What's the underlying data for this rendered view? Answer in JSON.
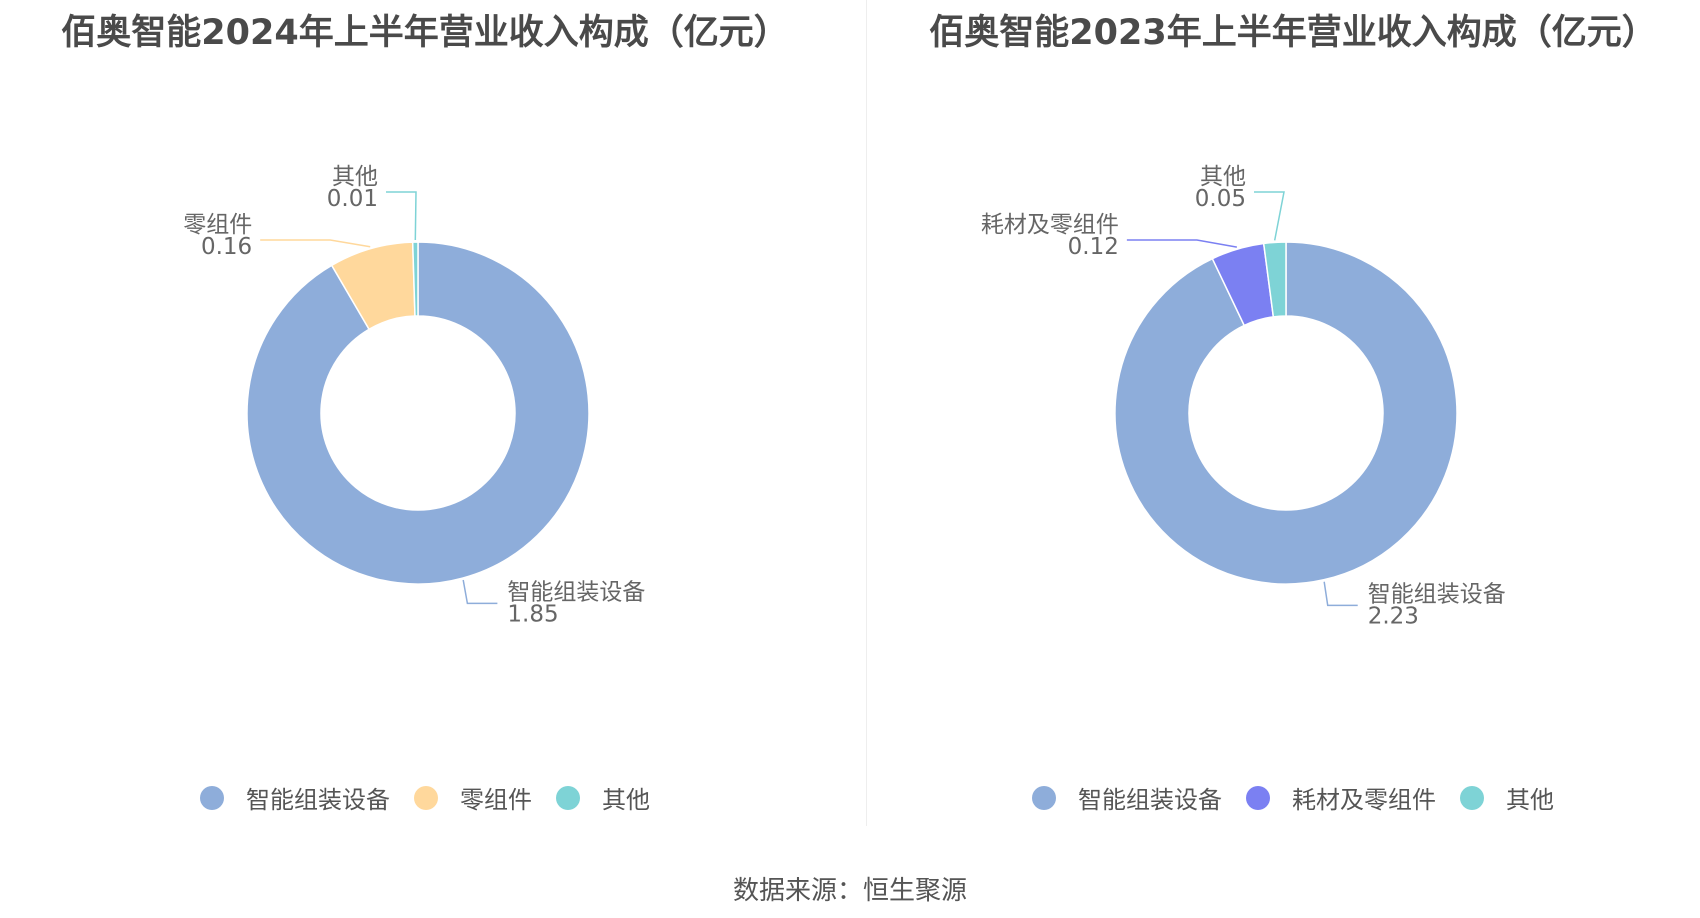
{
  "chart_data": [
    {
      "type": "pie",
      "title": "佰奥智能2024年上半年营业收入构成（亿元）",
      "unit": "亿元",
      "categories": [
        "智能组装设备",
        "零组件",
        "其他"
      ],
      "values": [
        1.85,
        0.16,
        0.01
      ],
      "value_labels": [
        "1.85",
        "0.16",
        "0.01"
      ],
      "colors": [
        "#8eadda",
        "#ffd89c",
        "#7ed3d6"
      ],
      "legend_position": "bottom"
    },
    {
      "type": "pie",
      "title": "佰奥智能2023年上半年营业收入构成（亿元）",
      "unit": "亿元",
      "categories": [
        "智能组装设备",
        "耗材及零组件",
        "其他"
      ],
      "values": [
        2.23,
        0.12,
        0.05
      ],
      "value_labels": [
        "2.23",
        "0.12",
        "0.05"
      ],
      "colors": [
        "#8eadda",
        "#7b80f2",
        "#7ed3d6"
      ],
      "legend_position": "bottom"
    }
  ],
  "source_text": "数据来源：恒生聚源"
}
